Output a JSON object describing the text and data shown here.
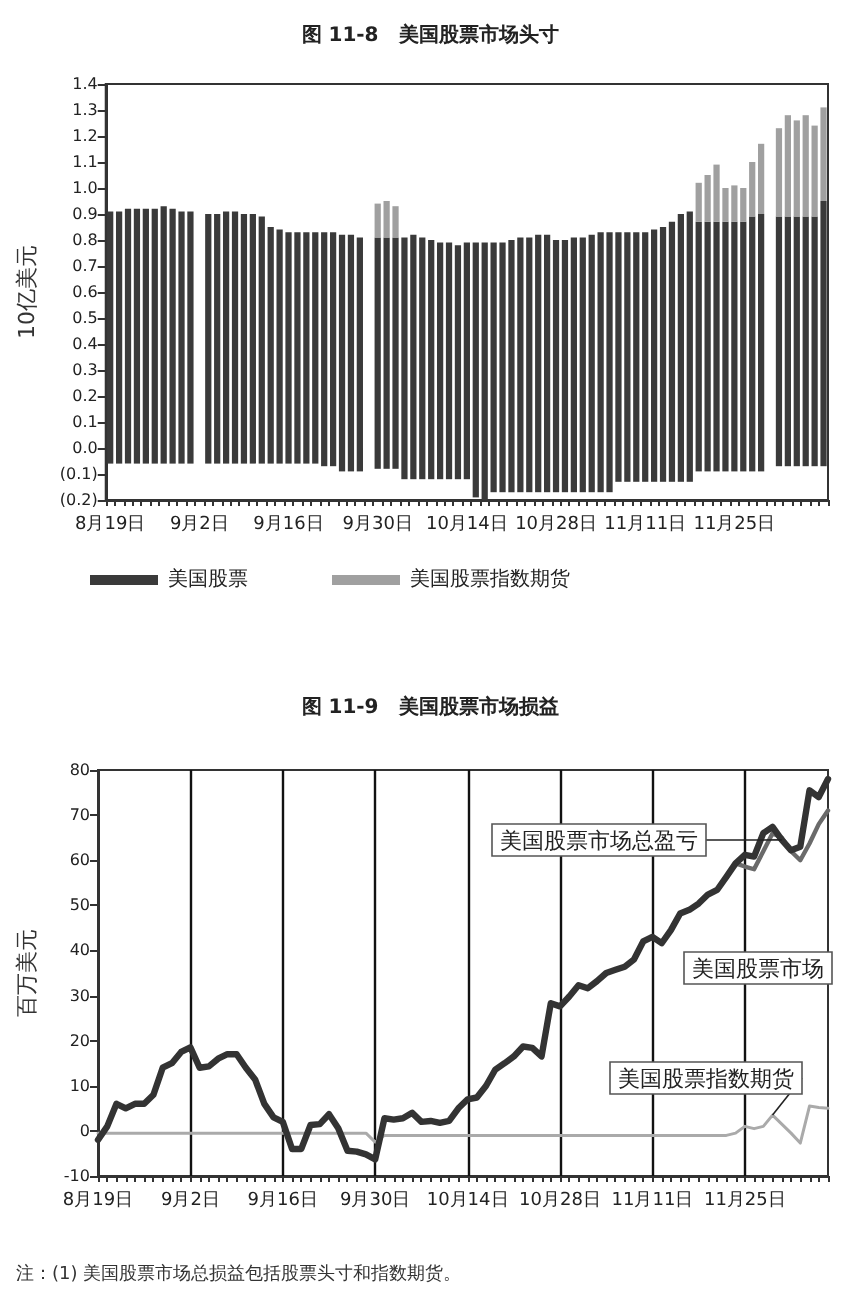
{
  "chart_data": [
    {
      "type": "bar",
      "title": "图 11-8　美国股票市场头寸",
      "ylabel": "10亿美元",
      "stacked": true,
      "legend": "bottom",
      "grid": false,
      "categories": [
        "8月19日",
        null,
        null,
        null,
        null,
        null,
        null,
        null,
        null,
        null,
        "9月2日",
        null,
        null,
        null,
        null,
        null,
        null,
        null,
        null,
        null,
        "9月16日",
        null,
        null,
        null,
        null,
        null,
        null,
        null,
        null,
        null,
        "9月30日",
        null,
        null,
        null,
        null,
        null,
        null,
        null,
        null,
        null,
        "10月14日",
        null,
        null,
        null,
        null,
        null,
        null,
        null,
        null,
        null,
        "10月28日",
        null,
        null,
        null,
        null,
        null,
        null,
        null,
        null,
        null,
        "11月11日",
        null,
        null,
        null,
        null,
        null,
        null,
        null,
        null,
        null,
        "11月25日",
        null,
        null,
        null,
        null,
        null,
        null,
        null,
        null,
        null,
        null
      ],
      "ylim": [
        -0.2,
        1.4
      ],
      "yticks": [
        {
          "value": -0.2,
          "label": "(0.2)"
        },
        {
          "value": -0.1,
          "label": "(0.1)"
        },
        {
          "value": 0,
          "label": "0.0"
        },
        0.1,
        0.2,
        0.3,
        0.4,
        0.5,
        0.6,
        0.7,
        0.8,
        0.9,
        {
          "value": 1,
          "label": "1.0"
        },
        1.1,
        1.2,
        1.3,
        1.4
      ],
      "series": [
        {
          "name": "美国股票",
          "color": "#3a3a3a",
          "values": [
            0.91,
            0.91,
            0.92,
            0.92,
            0.92,
            0.92,
            0.93,
            0.92,
            0.91,
            0.91,
            null,
            0.9,
            0.9,
            0.91,
            0.91,
            0.9,
            0.9,
            0.89,
            0.85,
            0.84,
            0.83,
            0.83,
            0.83,
            0.83,
            0.83,
            0.83,
            0.82,
            0.82,
            0.81,
            null,
            0.81,
            0.81,
            0.81,
            0.81,
            0.82,
            0.81,
            0.8,
            0.79,
            0.79,
            0.78,
            0.79,
            0.79,
            0.79,
            0.79,
            0.79,
            0.8,
            0.81,
            0.81,
            0.82,
            0.82,
            0.8,
            0.8,
            0.81,
            0.81,
            0.82,
            0.83,
            0.83,
            0.83,
            0.83,
            0.83,
            0.83,
            0.84,
            0.85,
            0.87,
            0.9,
            0.91,
            0.87,
            0.87,
            0.87,
            0.87,
            0.87,
            0.87,
            0.89,
            0.9,
            null,
            0.89,
            0.89,
            0.89,
            0.89,
            0.89,
            0.95
          ]
        },
        {
          "color": "#3a3a3a",
          "values": [
            -0.06,
            -0.06,
            -0.06,
            -0.06,
            -0.06,
            -0.06,
            -0.06,
            -0.06,
            -0.06,
            -0.06,
            null,
            -0.06,
            -0.06,
            -0.06,
            -0.06,
            -0.06,
            -0.06,
            -0.06,
            -0.06,
            -0.06,
            -0.06,
            -0.06,
            -0.06,
            -0.06,
            -0.07,
            -0.07,
            -0.09,
            -0.09,
            -0.09,
            null,
            -0.08,
            -0.08,
            -0.08,
            -0.12,
            -0.12,
            -0.12,
            -0.12,
            -0.12,
            -0.12,
            -0.12,
            -0.12,
            -0.19,
            -0.2,
            -0.17,
            -0.17,
            -0.17,
            -0.17,
            -0.17,
            -0.17,
            -0.17,
            -0.17,
            -0.17,
            -0.17,
            -0.17,
            -0.17,
            -0.17,
            -0.17,
            -0.13,
            -0.13,
            -0.13,
            -0.13,
            -0.13,
            -0.13,
            -0.13,
            -0.13,
            -0.13,
            -0.09,
            -0.09,
            -0.09,
            -0.09,
            -0.09,
            -0.09,
            -0.09,
            -0.09,
            null,
            -0.07,
            -0.07,
            -0.07,
            -0.07,
            -0.07,
            -0.07
          ]
        },
        {
          "name": "美国股票指数期货",
          "color": "#a0a0a0",
          "values": [
            null,
            null,
            null,
            null,
            null,
            null,
            null,
            null,
            null,
            null,
            null,
            null,
            null,
            null,
            null,
            null,
            null,
            null,
            null,
            null,
            null,
            null,
            null,
            null,
            null,
            null,
            null,
            null,
            null,
            null,
            0.13,
            0.14,
            0.12,
            null,
            null,
            null,
            null,
            null,
            null,
            null,
            null,
            null,
            null,
            null,
            null,
            null,
            null,
            null,
            null,
            null,
            null,
            null,
            null,
            null,
            null,
            null,
            null,
            null,
            null,
            null,
            null,
            null,
            null,
            null,
            null,
            null,
            0.15,
            0.18,
            0.22,
            0.13,
            0.14,
            0.13,
            0.21,
            0.27,
            null,
            0.34,
            0.39,
            0.37,
            0.39,
            0.35,
            0.36
          ]
        }
      ]
    },
    {
      "type": "line",
      "title": "图 11-9　美国股票市场损益",
      "ylabel": "百万美元",
      "grid": "x",
      "marker": "none",
      "line_style": "solid",
      "categories": [
        "8月19日",
        null,
        null,
        null,
        null,
        null,
        null,
        null,
        null,
        null,
        "9月2日",
        null,
        null,
        null,
        null,
        null,
        null,
        null,
        null,
        null,
        "9月16日",
        null,
        null,
        null,
        null,
        null,
        null,
        null,
        null,
        null,
        "9月30日",
        null,
        null,
        null,
        null,
        null,
        null,
        null,
        null,
        null,
        "10月14日",
        null,
        null,
        null,
        null,
        null,
        null,
        null,
        null,
        null,
        "10月28日",
        null,
        null,
        null,
        null,
        null,
        null,
        null,
        null,
        null,
        "11月11日",
        null,
        null,
        null,
        null,
        null,
        null,
        null,
        null,
        null,
        "11月25日",
        null,
        null,
        null,
        null,
        null,
        null,
        null,
        null,
        null
      ],
      "ylim": [
        -10,
        80
      ],
      "yticks": [
        -10,
        0,
        10,
        20,
        30,
        40,
        50,
        60,
        70,
        80
      ],
      "annotations": [
        "注：(1) 美国股票市场总损益包括股票头寸和指数期货。"
      ],
      "series": [
        {
          "name": "美国股票市场总盈亏",
          "color": "#333333",
          "values": [
            -2,
            1,
            6,
            5,
            6,
            6,
            8,
            14,
            15,
            17.5,
            18.5,
            14,
            14.3,
            16,
            17,
            17,
            14,
            11.4,
            6,
            3,
            2,
            -4,
            -4,
            1.3,
            1.5,
            3.7,
            0.6,
            -4.4,
            -4.6,
            -5.2,
            -6.3,
            2.8,
            2.5,
            2.8,
            4,
            2,
            2.2,
            1.8,
            2.2,
            5,
            7,
            7.4,
            10,
            13.6,
            15,
            16.5,
            18.7,
            18.4,
            16.5,
            28.3,
            27.6,
            29.8,
            32.3,
            31.6,
            33.2,
            35,
            35.7,
            36.4,
            38,
            42,
            43,
            41.6,
            44.5,
            48.2,
            49,
            50.4,
            52.4,
            53.4,
            56.3,
            59.3,
            61.2,
            60.8,
            66,
            67.4,
            64.5,
            62.2,
            63,
            75.5,
            74,
            78
          ]
        },
        {
          "name": "美国股票市场",
          "color": "#6a6a6a",
          "values": [
            -2,
            1,
            6,
            5,
            6,
            6,
            8,
            14,
            15,
            17.5,
            18.5,
            14,
            14.3,
            16,
            17,
            17,
            14,
            11.4,
            6,
            3,
            2,
            -4,
            -4,
            1.3,
            1.5,
            3.7,
            0.6,
            -4.4,
            -4.6,
            -5.2,
            -6.3,
            2.8,
            2.5,
            2.8,
            4,
            2,
            2.2,
            1.8,
            2.2,
            5,
            7,
            7.4,
            10,
            13.6,
            15,
            16.5,
            18.7,
            18.4,
            16.5,
            28.3,
            27.6,
            29.8,
            32.3,
            31.6,
            33.2,
            35,
            35.7,
            36.4,
            38,
            42,
            43,
            41.6,
            44.5,
            48.2,
            49,
            50.4,
            52.4,
            53.4,
            56.3,
            59.3,
            58.6,
            58,
            62,
            66,
            65,
            62,
            60,
            63.7,
            68,
            71
          ]
        },
        {
          "name": "美国股票指数期货",
          "color": "#aaaaaa",
          "values": [
            -0.5,
            -0.5,
            -0.5,
            -0.5,
            -0.5,
            -0.5,
            -0.5,
            -0.5,
            -0.5,
            -0.5,
            -0.5,
            -0.5,
            -0.5,
            -0.5,
            -0.5,
            -0.5,
            -0.5,
            -0.5,
            -0.5,
            -0.5,
            -0.5,
            -0.5,
            -0.5,
            -0.5,
            -0.5,
            -0.5,
            -0.5,
            -0.5,
            -0.5,
            -0.5,
            -2.5,
            -1,
            -1,
            -1,
            -1,
            -1,
            -1,
            -1,
            -1,
            -1,
            -1,
            -1,
            -1,
            -1,
            -1,
            -1,
            -1,
            -1,
            -1,
            -1,
            -1,
            -1,
            -1,
            -1,
            -1,
            -1,
            -1,
            -1,
            -1,
            -1,
            -1,
            -1,
            -1,
            -1,
            -1,
            -1,
            -1,
            -1,
            -1,
            -0.5,
            1,
            0.5,
            1,
            3.5,
            1.5,
            -0.5,
            -2.7,
            5.5,
            5.2,
            5
          ]
        }
      ]
    }
  ]
}
